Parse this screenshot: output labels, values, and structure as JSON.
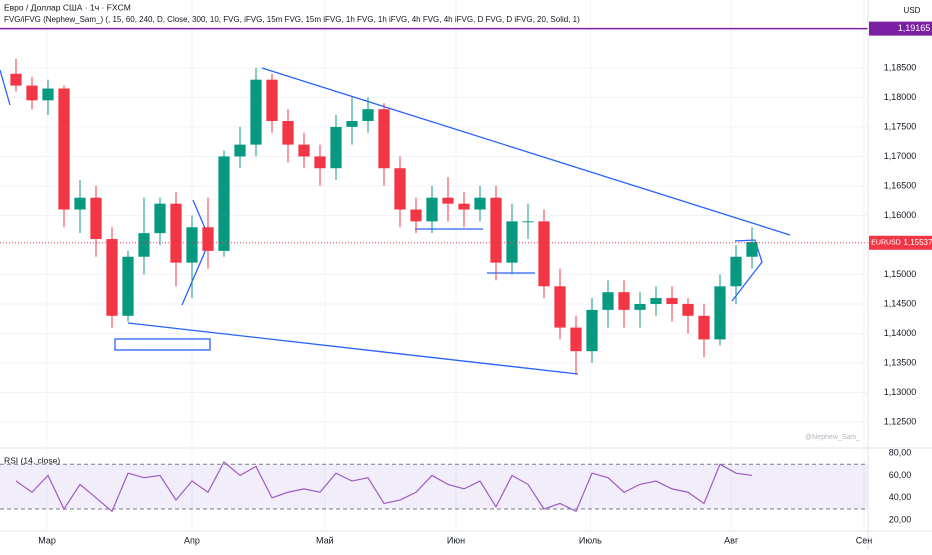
{
  "chart_data": [
    {
      "type": "candlestick",
      "title": "Евро / Доллар США · 1ч · FXCM",
      "subtitle": "FVG/iFVG (Nephew_Sam_) (, 15, 60, 240, D, Close, 300, 10, FVG, iFVG, 15m FVG, 15m iFVG, 1h FVG, 1h iFVG, 4h FVG, 4h iFVG, D FVG, D iFVG, 20, Solid, 1)",
      "currency": "USD",
      "symbol": "EURUSD",
      "watermark": "@Nephew_Sam_",
      "x": [
        1,
        2,
        3,
        4,
        5,
        6,
        7,
        8,
        9,
        10,
        11,
        12,
        13,
        14,
        15,
        16,
        17,
        18,
        19,
        20,
        21,
        22,
        23,
        24,
        25,
        26,
        27,
        28,
        29,
        30,
        31,
        32,
        33,
        34,
        35,
        36,
        37,
        38,
        39,
        40,
        41,
        42,
        43,
        44,
        45,
        46,
        47
      ],
      "open": [
        1.184,
        1.182,
        1.1795,
        1.1815,
        1.161,
        1.163,
        1.156,
        1.143,
        1.153,
        1.157,
        1.162,
        1.152,
        1.158,
        1.154,
        1.17,
        1.172,
        1.183,
        1.176,
        1.172,
        1.17,
        1.168,
        1.175,
        1.176,
        1.178,
        1.168,
        1.161,
        1.159,
        1.163,
        1.162,
        1.161,
        1.163,
        1.152,
        1.159,
        1.159,
        1.148,
        1.141,
        1.137,
        1.144,
        1.147,
        1.144,
        1.145,
        1.146,
        1.145,
        1.143,
        1.139,
        1.148,
        1.153
      ],
      "high": [
        1.1865,
        1.1835,
        1.183,
        1.182,
        1.166,
        1.165,
        1.158,
        1.154,
        1.163,
        1.163,
        1.164,
        1.16,
        1.163,
        1.171,
        1.175,
        1.185,
        1.184,
        1.178,
        1.174,
        1.172,
        1.177,
        1.18,
        1.18,
        1.179,
        1.17,
        1.163,
        1.165,
        1.1665,
        1.164,
        1.165,
        1.165,
        1.162,
        1.162,
        1.161,
        1.151,
        1.143,
        1.146,
        1.149,
        1.149,
        1.147,
        1.148,
        1.148,
        1.146,
        1.145,
        1.15,
        1.155,
        1.158
      ],
      "low": [
        1.181,
        1.178,
        1.177,
        1.158,
        1.157,
        1.153,
        1.141,
        1.142,
        1.15,
        1.155,
        1.148,
        1.146,
        1.151,
        1.153,
        1.168,
        1.17,
        1.174,
        1.169,
        1.168,
        1.165,
        1.166,
        1.172,
        1.174,
        1.165,
        1.158,
        1.157,
        1.157,
        1.159,
        1.158,
        1.159,
        1.149,
        1.15,
        1.156,
        1.146,
        1.139,
        1.133,
        1.135,
        1.141,
        1.141,
        1.141,
        1.143,
        1.142,
        1.14,
        1.136,
        1.138,
        1.145,
        1.151
      ],
      "close": [
        1.182,
        1.1795,
        1.1815,
        1.161,
        1.163,
        1.156,
        1.143,
        1.153,
        1.157,
        1.162,
        1.152,
        1.158,
        1.154,
        1.17,
        1.172,
        1.183,
        1.176,
        1.172,
        1.17,
        1.168,
        1.175,
        1.176,
        1.178,
        1.168,
        1.161,
        1.159,
        1.163,
        1.162,
        1.161,
        1.163,
        1.152,
        1.159,
        1.159,
        1.148,
        1.141,
        1.137,
        1.144,
        1.147,
        1.144,
        1.145,
        1.146,
        1.145,
        1.143,
        1.139,
        1.148,
        1.153,
        1.1555
      ],
      "up_color": "#089981",
      "down_color": "#f23645",
      "xlim": [
        0,
        54.25
      ],
      "xticks": [
        {
          "value": 2.94,
          "label": "Мар"
        },
        {
          "value": 12,
          "label": "Апр"
        },
        {
          "value": 20.3,
          "label": "Май"
        },
        {
          "value": 28.5,
          "label": "Июн"
        },
        {
          "value": 36.9,
          "label": "Июль"
        },
        {
          "value": 45.7,
          "label": "Авг"
        },
        {
          "value": 54,
          "label": "Сен"
        }
      ],
      "ylim": [
        1.1206,
        1.1965
      ],
      "yticks": [
        {
          "value": 1.185,
          "label": "1,18500"
        },
        {
          "value": 1.18,
          "label": "1,18000"
        },
        {
          "value": 1.175,
          "label": "1,17500"
        },
        {
          "value": 1.17,
          "label": "1,17000"
        },
        {
          "value": 1.165,
          "label": "1,16500"
        },
        {
          "value": 1.16,
          "label": "1,16000"
        },
        {
          "value": 1.15,
          "label": "1,15000"
        },
        {
          "value": 1.145,
          "label": "1,14500"
        },
        {
          "value": 1.14,
          "label": "1,14000"
        },
        {
          "value": 1.135,
          "label": "1,13500"
        },
        {
          "value": 1.13,
          "label": "1,13000"
        },
        {
          "value": 1.125,
          "label": "1,12500"
        }
      ],
      "reference_line": {
        "value": 1.19165,
        "label": "1,19165",
        "color": "#7b1fa2"
      },
      "last_price": {
        "value": 1.15537,
        "label": "1,15537",
        "color": "#f23645"
      },
      "grid": true
    },
    {
      "type": "line",
      "title": "RSI (14, close)",
      "x": [
        1,
        2,
        3,
        4,
        5,
        6,
        7,
        8,
        9,
        10,
        11,
        12,
        13,
        14,
        15,
        16,
        17,
        18,
        19,
        20,
        21,
        22,
        23,
        24,
        25,
        26,
        27,
        28,
        29,
        30,
        31,
        32,
        33,
        34,
        35,
        36,
        37,
        38,
        39,
        40,
        41,
        42,
        43,
        44,
        45,
        46,
        47
      ],
      "values": [
        55,
        45,
        60,
        30,
        52,
        40,
        28,
        62,
        58,
        60,
        38,
        55,
        45,
        72,
        60,
        68,
        40,
        45,
        48,
        45,
        62,
        55,
        58,
        35,
        38,
        45,
        60,
        52,
        48,
        55,
        32,
        60,
        52,
        30,
        35,
        28,
        62,
        58,
        45,
        52,
        55,
        48,
        45,
        35,
        70,
        62,
        60
      ],
      "color": "#9c5bc6",
      "xlim": [
        0,
        54.25
      ],
      "ylim": [
        11.3,
        82.7
      ],
      "yticks": [
        {
          "value": 80,
          "label": "80,00"
        },
        {
          "value": 60,
          "label": "60,00"
        },
        {
          "value": 40,
          "label": "40,00"
        },
        {
          "value": 20,
          "label": "20,00"
        }
      ],
      "band": [
        30,
        70
      ]
    }
  ]
}
